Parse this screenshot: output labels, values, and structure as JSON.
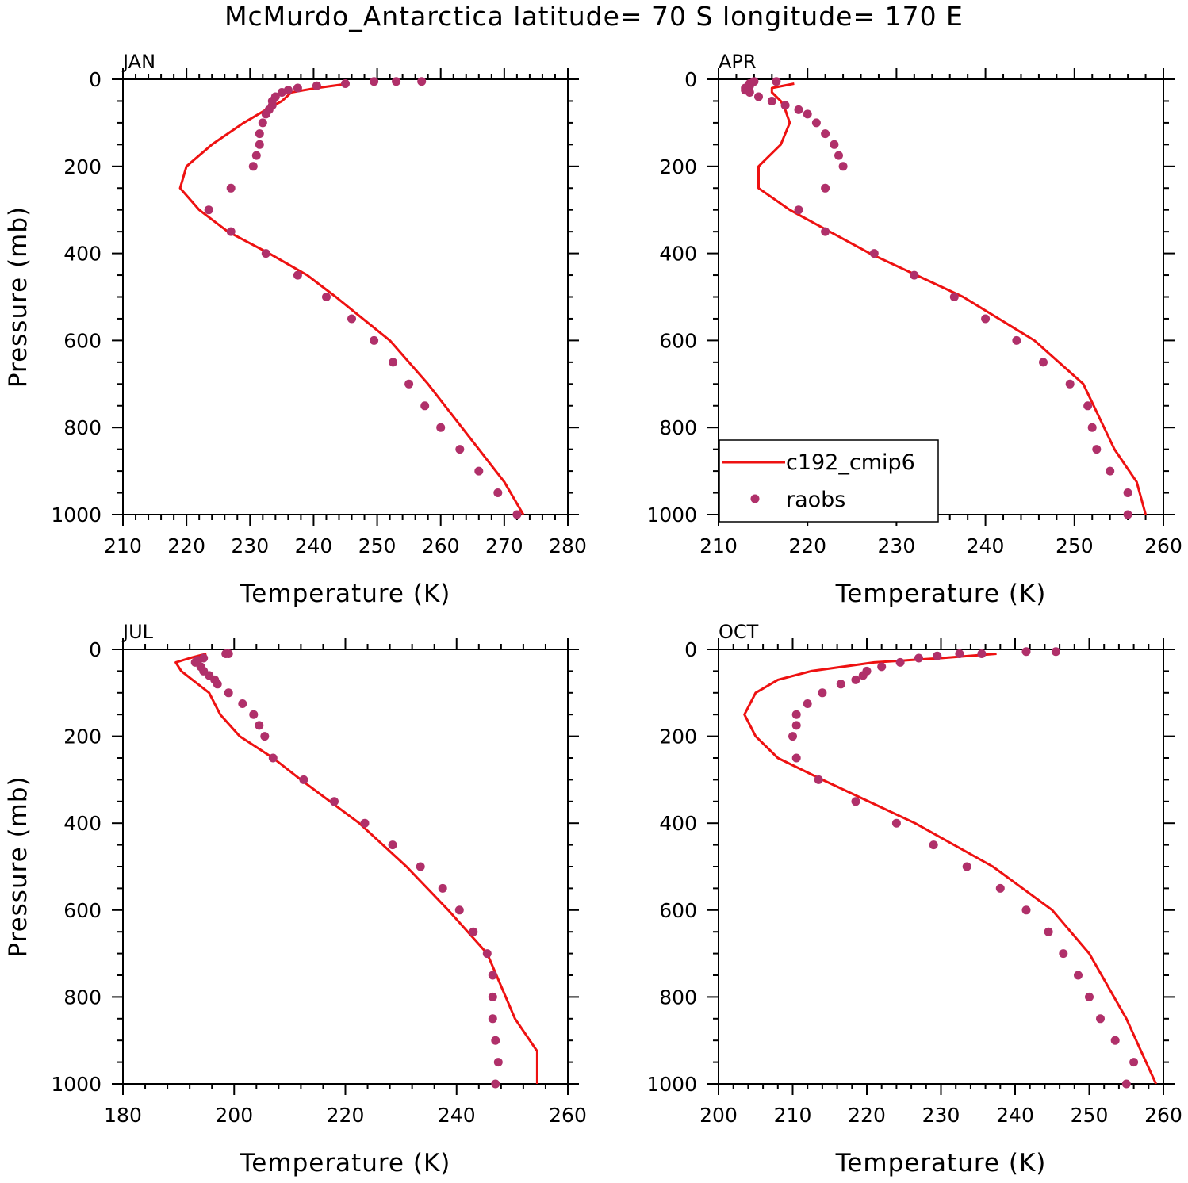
{
  "title": "McMurdo_Antarctica  latitude= 70 S longitude= 170 E",
  "colors": {
    "model": "#ee1111",
    "obs": "#b0306a",
    "axes": "#000000"
  },
  "legend": {
    "model_label": "c192_cmip6",
    "obs_label": "raobs"
  },
  "chart_data": [
    {
      "type": "line",
      "panel": "JAN",
      "xlabel": "Temperature (K)",
      "ylabel": "Pressure (mb)",
      "xlim": [
        210,
        280
      ],
      "ylim": [
        1000,
        0
      ],
      "xticks": [
        "210",
        "220",
        "230",
        "240",
        "250",
        "260",
        "270",
        "280"
      ],
      "yticks": [
        "0",
        "200",
        "400",
        "600",
        "800",
        "1000"
      ],
      "model": {
        "name": "c192_cmip6",
        "p": [
          10,
          20,
          30,
          50,
          70,
          100,
          150,
          200,
          250,
          300,
          350,
          400,
          450,
          500,
          600,
          700,
          850,
          925,
          1000
        ],
        "t": [
          245.5,
          240.5,
          236.5,
          235.0,
          232.5,
          229.0,
          224.0,
          220.0,
          219.0,
          222.0,
          226.5,
          233.0,
          239.0,
          243.5,
          252.0,
          258.0,
          266.0,
          270.0,
          273.0
        ]
      },
      "obs": {
        "name": "raobs",
        "p": [
          5,
          5,
          5,
          10,
          15,
          20,
          25,
          30,
          40,
          50,
          60,
          70,
          80,
          100,
          125,
          150,
          175,
          200,
          250,
          300,
          350,
          400,
          450,
          500,
          550,
          600,
          650,
          700,
          750,
          800,
          850,
          900,
          950,
          1000
        ],
        "t": [
          257.0,
          253.0,
          249.5,
          245.0,
          240.5,
          237.5,
          236.0,
          235.0,
          234.0,
          233.5,
          233.5,
          233.0,
          232.5,
          232.0,
          231.5,
          231.5,
          231.0,
          230.5,
          227.0,
          223.5,
          227.0,
          232.5,
          237.5,
          242.0,
          246.0,
          249.5,
          252.5,
          255.0,
          257.5,
          260.0,
          263.0,
          266.0,
          269.0,
          272.0
        ]
      }
    },
    {
      "type": "line",
      "panel": "APR",
      "xlabel": "Temperature (K)",
      "ylabel": "",
      "xlim": [
        210,
        260
      ],
      "ylim": [
        1000,
        0
      ],
      "xticks": [
        "210",
        "220",
        "230",
        "240",
        "250",
        "260"
      ],
      "yticks": [
        "0",
        "200",
        "400",
        "600",
        "800",
        "1000"
      ],
      "model": {
        "name": "c192_cmip6",
        "p": [
          10,
          20,
          30,
          50,
          70,
          100,
          150,
          200,
          250,
          300,
          400,
          500,
          600,
          700,
          850,
          925,
          1000
        ],
        "t": [
          218.5,
          216.0,
          216.0,
          217.0,
          217.5,
          218.0,
          217.0,
          214.5,
          214.5,
          218.0,
          227.0,
          237.5,
          245.5,
          251.0,
          254.5,
          257.0,
          258.0
        ]
      },
      "obs": {
        "name": "raobs",
        "p": [
          5,
          5,
          10,
          15,
          20,
          25,
          30,
          40,
          50,
          60,
          70,
          80,
          100,
          125,
          150,
          175,
          200,
          250,
          300,
          350,
          400,
          450,
          500,
          550,
          600,
          650,
          700,
          750,
          800,
          850,
          900,
          950,
          1000
        ],
        "t": [
          216.5,
          214.0,
          213.5,
          213.5,
          213.0,
          213.0,
          213.5,
          214.5,
          216.0,
          217.5,
          219.0,
          220.0,
          221.0,
          222.0,
          223.0,
          223.5,
          224.0,
          222.0,
          219.0,
          222.0,
          227.5,
          232.0,
          236.5,
          240.0,
          243.5,
          246.5,
          249.5,
          251.5,
          252.0,
          252.5,
          254.0,
          256.0,
          256.0
        ]
      }
    },
    {
      "type": "line",
      "panel": "JUL",
      "xlabel": "Temperature (K)",
      "ylabel": "Pressure (mb)",
      "xlim": [
        180,
        260
      ],
      "ylim": [
        1000,
        0
      ],
      "xticks": [
        "180",
        "200",
        "220",
        "240",
        "260"
      ],
      "yticks": [
        "0",
        "200",
        "400",
        "600",
        "800",
        "1000"
      ],
      "model": {
        "name": "c192_cmip6",
        "p": [
          10,
          20,
          30,
          50,
          70,
          100,
          150,
          200,
          250,
          300,
          400,
          500,
          600,
          700,
          850,
          925,
          1000
        ],
        "t": [
          195.0,
          192.0,
          189.5,
          190.5,
          192.5,
          195.5,
          197.5,
          201.0,
          207.0,
          212.0,
          222.5,
          231.0,
          238.5,
          245.5,
          250.5,
          254.5,
          254.5
        ]
      },
      "obs": {
        "name": "raobs",
        "p": [
          10,
          10,
          20,
          25,
          30,
          40,
          50,
          60,
          70,
          80,
          100,
          125,
          150,
          175,
          200,
          250,
          300,
          350,
          400,
          450,
          500,
          550,
          600,
          650,
          700,
          750,
          800,
          850,
          900,
          950,
          1000
        ],
        "t": [
          199.0,
          198.5,
          194.5,
          193.5,
          193.0,
          194.0,
          194.5,
          195.5,
          196.5,
          197.0,
          199.0,
          201.5,
          203.5,
          204.5,
          205.5,
          207.0,
          212.5,
          218.0,
          223.5,
          228.5,
          233.5,
          237.5,
          240.5,
          243.0,
          245.5,
          246.5,
          246.5,
          246.5,
          247.0,
          247.5,
          247.0
        ]
      }
    },
    {
      "type": "line",
      "panel": "OCT",
      "xlabel": "Temperature (K)",
      "ylabel": "",
      "xlim": [
        200,
        260
      ],
      "ylim": [
        1000,
        0
      ],
      "xticks": [
        "200",
        "210",
        "220",
        "230",
        "240",
        "250",
        "260"
      ],
      "yticks": [
        "0",
        "200",
        "400",
        "600",
        "800",
        "1000"
      ],
      "model": {
        "name": "c192_cmip6",
        "p": [
          10,
          20,
          30,
          50,
          70,
          100,
          150,
          200,
          250,
          300,
          400,
          500,
          600,
          700,
          850,
          925,
          1000
        ],
        "t": [
          237.5,
          230.0,
          221.0,
          212.5,
          208.0,
          205.0,
          203.5,
          205.0,
          208.0,
          214.0,
          226.5,
          237.0,
          245.0,
          250.0,
          255.0,
          257.0,
          259.0
        ]
      },
      "obs": {
        "name": "raobs",
        "p": [
          5,
          5,
          10,
          10,
          15,
          20,
          30,
          40,
          50,
          60,
          70,
          80,
          100,
          125,
          150,
          175,
          200,
          250,
          300,
          350,
          400,
          450,
          500,
          550,
          600,
          650,
          700,
          750,
          800,
          850,
          900,
          950,
          1000
        ],
        "t": [
          245.5,
          241.5,
          235.5,
          232.5,
          229.5,
          227.0,
          224.5,
          222.0,
          220.0,
          219.5,
          218.5,
          216.5,
          214.0,
          212.0,
          210.5,
          210.5,
          210.0,
          210.5,
          213.5,
          218.5,
          224.0,
          229.0,
          233.5,
          238.0,
          241.5,
          244.5,
          246.5,
          248.5,
          250.0,
          251.5,
          253.5,
          256.0,
          255.0
        ]
      }
    }
  ]
}
